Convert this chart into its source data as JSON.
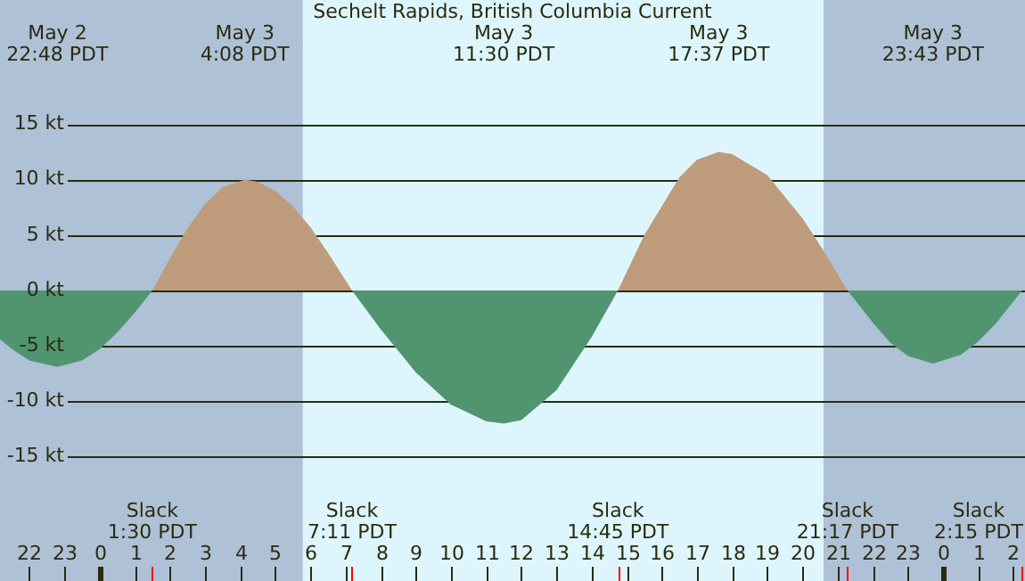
{
  "chart_data": {
    "type": "area",
    "title": "Sechelt Rapids, British Columbia Current",
    "x": [
      "--05-02T21:10",
      "--05-02T21:31",
      "--05-02T22:00",
      "--05-02T22:48",
      "--05-02T23:30",
      "--05-03T00:00",
      "--05-03T00:30",
      "--05-03T01:00",
      "--05-03T01:30",
      "--05-03T02:00",
      "--05-03T02:30",
      "--05-03T03:00",
      "--05-03T03:30",
      "--05-03T04:08",
      "--05-03T04:30",
      "--05-03T05:00",
      "--05-03T05:30",
      "--05-03T06:00",
      "--05-03T06:30",
      "--05-03T07:11",
      "--05-03T08:00",
      "--05-03T09:00",
      "--05-03T10:00",
      "--05-03T11:00",
      "--05-03T11:30",
      "--05-03T12:00",
      "--05-03T13:00",
      "--05-03T14:00",
      "--05-03T14:45",
      "--05-03T15:30",
      "--05-03T16:30",
      "--05-03T17:00",
      "--05-03T17:37",
      "--05-03T18:00",
      "--05-03T19:00",
      "--05-03T20:00",
      "--05-03T20:30",
      "--05-03T21:17",
      "--05-03T22:00",
      "--05-03T22:30",
      "--05-03T23:00",
      "--05-03T23:43",
      "--05-04T00:30",
      "--05-04T01:00",
      "--05-04T01:30",
      "--05-04T02:06",
      "--05-04T02:15"
    ],
    "series": [
      {
        "color": "#bd9b7b",
        "values": [
          null,
          null,
          null,
          null,
          null,
          null,
          null,
          null,
          0,
          2.9,
          5.6,
          7.8,
          9.3,
          10,
          9.8,
          9.0,
          7.6,
          5.7,
          3.4,
          0,
          null,
          null,
          null,
          null,
          null,
          null,
          null,
          null,
          0,
          5.0,
          10.2,
          11.8,
          12.5,
          12.3,
          10.4,
          6.5,
          4.1,
          0,
          null,
          null,
          null,
          null,
          null,
          null,
          null,
          null,
          null
        ]
      },
      {
        "color": "#509570",
        "values": [
          -4.4,
          -5.3,
          -6.3,
          -6.9,
          -6.3,
          -5.3,
          -3.8,
          -2.0,
          0,
          null,
          null,
          null,
          null,
          null,
          null,
          null,
          null,
          null,
          null,
          0,
          -3.5,
          -7.4,
          -10.3,
          -11.8,
          -12,
          -11.7,
          -9.0,
          -4.2,
          0,
          null,
          null,
          null,
          null,
          null,
          null,
          null,
          null,
          0,
          -2.9,
          -4.7,
          -5.9,
          -6.6,
          -5.8,
          -4.6,
          -3.0,
          -0.6,
          0
        ]
      }
    ],
    "xlim": [
      "--05-02T21:10",
      "--05-04T02:20"
    ],
    "xticks": [
      {
        "value": "--05-02T22:00",
        "label": "22"
      },
      {
        "value": "--05-02T23:00",
        "label": "23"
      },
      {
        "value": "--05-03T00:00",
        "label": "0"
      },
      {
        "value": "--05-03T01:00",
        "label": "1"
      },
      {
        "value": "--05-03T02:00",
        "label": "2"
      },
      {
        "value": "--05-03T03:00",
        "label": "3"
      },
      {
        "value": "--05-03T04:00",
        "label": "4"
      },
      {
        "value": "--05-03T05:00",
        "label": "5"
      },
      {
        "value": "--05-03T06:00",
        "label": "6"
      },
      {
        "value": "--05-03T07:00",
        "label": "7"
      },
      {
        "value": "--05-03T08:00",
        "label": "8"
      },
      {
        "value": "--05-03T09:00",
        "label": "9"
      },
      {
        "value": "--05-03T10:00",
        "label": "10"
      },
      {
        "value": "--05-03T11:00",
        "label": "11"
      },
      {
        "value": "--05-03T12:00",
        "label": "12"
      },
      {
        "value": "--05-03T13:00",
        "label": "13"
      },
      {
        "value": "--05-03T14:00",
        "label": "14"
      },
      {
        "value": "--05-03T15:00",
        "label": "15"
      },
      {
        "value": "--05-03T16:00",
        "label": "16"
      },
      {
        "value": "--05-03T17:00",
        "label": "17"
      },
      {
        "value": "--05-03T18:00",
        "label": "18"
      },
      {
        "value": "--05-03T19:00",
        "label": "19"
      },
      {
        "value": "--05-03T20:00",
        "label": "20"
      },
      {
        "value": "--05-03T21:00",
        "label": "21"
      },
      {
        "value": "--05-03T22:00",
        "label": "22"
      },
      {
        "value": "--05-03T23:00",
        "label": "23"
      },
      {
        "value": "--05-04T00:00",
        "label": "0"
      },
      {
        "value": "--05-04T01:00",
        "label": "1"
      },
      {
        "value": "--05-04T02:00",
        "label": "2"
      }
    ],
    "x2lim": [
      "--05-02T21:10",
      "--05-04T02:20"
    ],
    "x2ticks": [
      {
        "value": "--05-02T22:48",
        "label": "May 2\n22:48 PDT"
      },
      {
        "value": "--05-03T04:08",
        "label": "May 3\n4:08 PDT"
      },
      {
        "value": "--05-03T11:30",
        "label": "May 3\n11:30 PDT"
      },
      {
        "value": "--05-03T17:37",
        "label": "May 3\n17:37 PDT"
      },
      {
        "value": "--05-03T23:43",
        "label": "May 3\n23:43 PDT"
      }
    ],
    "ylim": [
      -26.2,
      26.2
    ],
    "yticks": [
      {
        "value": 15,
        "label": "15 kt"
      },
      {
        "value": 10,
        "label": "10 kt"
      },
      {
        "value": 5,
        "label": "5 kt"
      },
      {
        "value": 0,
        "label": "0 kt"
      },
      {
        "value": -5,
        "label": "-5 kt"
      },
      {
        "value": -10,
        "label": "-10 kt"
      },
      {
        "value": -15,
        "label": "-15 kt"
      }
    ],
    "grid": "y",
    "legend": false,
    "bands": [
      {
        "axis": "x",
        "from": "--05-02T21:10",
        "to": "--05-03T05:47",
        "color": "#aec1d7"
      },
      {
        "axis": "x",
        "from": "--05-03T20:36",
        "to": "--05-04T02:20",
        "color": "#aec1d7"
      }
    ],
    "annotations": [
      "Slack\n1:30 PDT",
      "Slack\n7:11 PDT",
      "Slack\n14:45 PDT",
      "Slack\n21:17 PDT",
      "Slack\n2:15 PDT"
    ]
  }
}
